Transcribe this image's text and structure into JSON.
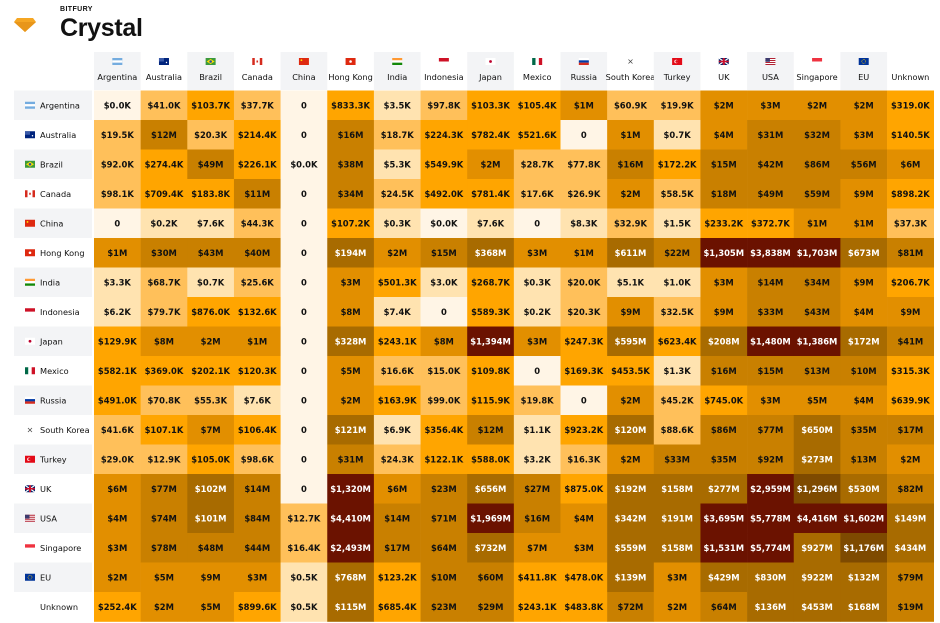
{
  "header": {
    "company": "BITFURY",
    "product": "Crystal"
  },
  "colors": {
    "brand_yellow": "#F5A623",
    "scale": [
      "#FFF5E6",
      "#FFE3B0",
      "#FFC05A",
      "#FFA500",
      "#E28F00",
      "#C98000",
      "#A86B00",
      "#7E4A00",
      "#6B1200"
    ]
  },
  "chart_data": {
    "type": "heatmap",
    "columns": [
      "Argentina",
      "Australia",
      "Brazil",
      "Canada",
      "China",
      "Hong Kong",
      "India",
      "Indonesia",
      "Japan",
      "Mexico",
      "Russia",
      "South Korea",
      "Turkey",
      "UK",
      "USA",
      "Singapore",
      "EU",
      "Unknown"
    ],
    "rows": [
      "Argentina",
      "Australia",
      "Brazil",
      "Canada",
      "China",
      "Hong Kong",
      "India",
      "Indonesia",
      "Japan",
      "Mexico",
      "Russia",
      "South Korea",
      "Turkey",
      "UK",
      "USA",
      "Singapore",
      "EU",
      "Unknown"
    ],
    "flag_icons": [
      "argentina-flag-icon",
      "australia-flag-icon",
      "brazil-flag-icon",
      "canada-flag-icon",
      "china-flag-icon",
      "hong-kong-flag-icon",
      "india-flag-icon",
      "indonesia-flag-icon",
      "japan-flag-icon",
      "mexico-flag-icon",
      "russia-flag-icon",
      "south-korea-flag-icon",
      "turkey-flag-icon",
      "uk-flag-icon",
      "usa-flag-icon",
      "singapore-flag-icon",
      "eu-flag-icon",
      "none"
    ],
    "cells": [
      [
        "$0.0K",
        "$41.0K",
        "$103.7K",
        "$37.7K",
        "0",
        "$833.3K",
        "$3.5K",
        "$97.8K",
        "$103.3K",
        "$105.4K",
        "$1M",
        "$60.9K",
        "$19.9K",
        "$2M",
        "$3M",
        "$2M",
        "$2M",
        "$319.0K"
      ],
      [
        "$19.5K",
        "$12M",
        "$20.3K",
        "$214.4K",
        "0",
        "$16M",
        "$18.7K",
        "$224.3K",
        "$782.4K",
        "$521.6K",
        "0",
        "$1M",
        "$0.7K",
        "$4M",
        "$31M",
        "$32M",
        "$3M",
        "$140.5K"
      ],
      [
        "$92.0K",
        "$274.4K",
        "$49M",
        "$226.1K",
        "$0.0K",
        "$38M",
        "$5.3K",
        "$549.9K",
        "$2M",
        "$28.7K",
        "$77.8K",
        "$16M",
        "$172.2K",
        "$15M",
        "$42M",
        "$86M",
        "$56M",
        "$6M"
      ],
      [
        "$98.1K",
        "$709.4K",
        "$183.8K",
        "$11M",
        "0",
        "$34M",
        "$24.5K",
        "$492.0K",
        "$781.4K",
        "$17.6K",
        "$26.9K",
        "$2M",
        "$58.5K",
        "$18M",
        "$49M",
        "$59M",
        "$9M",
        "$898.2K"
      ],
      [
        "0",
        "$0.2K",
        "$7.6K",
        "$44.3K",
        "0",
        "$107.2K",
        "$0.3K",
        "$0.0K",
        "$7.6K",
        "0",
        "$8.3K",
        "$32.9K",
        "$1.5K",
        "$233.2K",
        "$372.7K",
        "$1M",
        "$1M",
        "$37.3K"
      ],
      [
        "$1M",
        "$30M",
        "$43M",
        "$40M",
        "0",
        "$194M",
        "$2M",
        "$15M",
        "$368M",
        "$3M",
        "$1M",
        "$611M",
        "$22M",
        "$1,305M",
        "$3,838M",
        "$1,703M",
        "$673M",
        "$81M"
      ],
      [
        "$3.3K",
        "$68.7K",
        "$0.7K",
        "$25.6K",
        "0",
        "$3M",
        "$501.3K",
        "$3.0K",
        "$268.7K",
        "$0.3K",
        "$20.0K",
        "$5.1K",
        "$1.0K",
        "$3M",
        "$14M",
        "$34M",
        "$9M",
        "$206.7K"
      ],
      [
        "$6.2K",
        "$79.7K",
        "$876.0K",
        "$132.6K",
        "0",
        "$8M",
        "$7.4K",
        "0",
        "$589.3K",
        "$0.2K",
        "$20.3K",
        "$9M",
        "$32.5K",
        "$9M",
        "$33M",
        "$43M",
        "$4M",
        "$9M"
      ],
      [
        "$129.9K",
        "$8M",
        "$2M",
        "$1M",
        "0",
        "$328M",
        "$243.1K",
        "$8M",
        "$1,394M",
        "$3M",
        "$247.3K",
        "$595M",
        "$623.4K",
        "$208M",
        "$1,480M",
        "$1,386M",
        "$172M",
        "$41M"
      ],
      [
        "$582.1K",
        "$369.0K",
        "$202.1K",
        "$120.3K",
        "0",
        "$5M",
        "$16.6K",
        "$15.0K",
        "$109.8K",
        "0",
        "$169.3K",
        "$453.5K",
        "$1.3K",
        "$16M",
        "$15M",
        "$13M",
        "$10M",
        "$315.3K"
      ],
      [
        "$491.0K",
        "$70.8K",
        "$55.3K",
        "$7.6K",
        "0",
        "$2M",
        "$163.9K",
        "$99.0K",
        "$115.9K",
        "$19.8K",
        "0",
        "$2M",
        "$45.2K",
        "$745.0K",
        "$3M",
        "$5M",
        "$4M",
        "$639.9K"
      ],
      [
        "$41.6K",
        "$107.1K",
        "$7M",
        "$106.4K",
        "0",
        "$121M",
        "$6.9K",
        "$356.4K",
        "$12M",
        "$1.1K",
        "$923.2K",
        "$120M",
        "$88.6K",
        "$86M",
        "$77M",
        "$650M",
        "$35M",
        "$17M"
      ],
      [
        "$29.0K",
        "$12.9K",
        "$105.0K",
        "$98.6K",
        "0",
        "$31M",
        "$24.3K",
        "$122.1K",
        "$588.0K",
        "$3.2K",
        "$16.3K",
        "$2M",
        "$33M",
        "$35M",
        "$92M",
        "$273M",
        "$13M",
        "$2M"
      ],
      [
        "$6M",
        "$77M",
        "$102M",
        "$14M",
        "0",
        "$1,320M",
        "$6M",
        "$23M",
        "$656M",
        "$27M",
        "$875.0K",
        "$192M",
        "$158M",
        "$277M",
        "$2,959M",
        "$1,296M",
        "$530M",
        "$82M"
      ],
      [
        "$4M",
        "$74M",
        "$101M",
        "$84M",
        "$12.7K",
        "$4,410M",
        "$14M",
        "$71M",
        "$1,969M",
        "$16M",
        "$4M",
        "$342M",
        "$191M",
        "$3,695M",
        "$5,778M",
        "$4,416M",
        "$1,602M",
        "$149M"
      ],
      [
        "$3M",
        "$78M",
        "$48M",
        "$44M",
        "$16.4K",
        "$2,493M",
        "$17M",
        "$64M",
        "$732M",
        "$7M",
        "$3M",
        "$559M",
        "$158M",
        "$1,531M",
        "$5,774M",
        "$927M",
        "$1,176M",
        "$434M"
      ],
      [
        "$2M",
        "$5M",
        "$9M",
        "$3M",
        "$0.5K",
        "$768M",
        "$123.2K",
        "$10M",
        "$60M",
        "$411.8K",
        "$478.0K",
        "$139M",
        "$3M",
        "$429M",
        "$830M",
        "$922M",
        "$132M",
        "$79M"
      ],
      [
        "$252.4K",
        "$2M",
        "$5M",
        "$899.6K",
        "$0.5K",
        "$115M",
        "$685.4K",
        "$23M",
        "$29M",
        "$243.1K",
        "$483.8K",
        "$72M",
        "$2M",
        "$64M",
        "$136M",
        "$453M",
        "$168M",
        "$19M"
      ]
    ]
  }
}
